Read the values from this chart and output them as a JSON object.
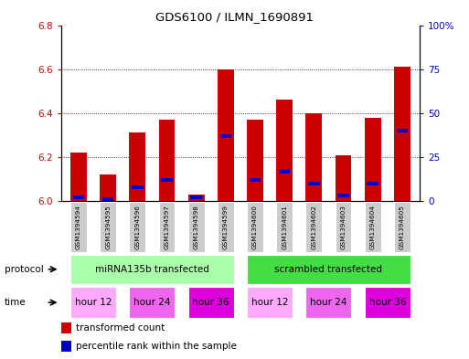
{
  "title": "GDS6100 / ILMN_1690891",
  "samples": [
    "GSM1394594",
    "GSM1394595",
    "GSM1394596",
    "GSM1394597",
    "GSM1394598",
    "GSM1394599",
    "GSM1394600",
    "GSM1394601",
    "GSM1394602",
    "GSM1394603",
    "GSM1394604",
    "GSM1394605"
  ],
  "red_values": [
    6.22,
    6.12,
    6.31,
    6.37,
    6.03,
    6.6,
    6.37,
    6.46,
    6.4,
    6.21,
    6.38,
    6.61
  ],
  "blue_values_pct": [
    2,
    1,
    8,
    12,
    2,
    37,
    12,
    17,
    10,
    3,
    10,
    40
  ],
  "ylim_left": [
    6.0,
    6.8
  ],
  "ylim_right": [
    0,
    100
  ],
  "yticks_left": [
    6.0,
    6.2,
    6.4,
    6.6,
    6.8
  ],
  "yticks_right": [
    0,
    25,
    50,
    75,
    100
  ],
  "ytick_labels_right": [
    "0",
    "25",
    "50",
    "75",
    "100%"
  ],
  "bar_width": 0.55,
  "bar_color_red": "#cc0000",
  "bar_color_blue": "#0000cc",
  "base_value": 6.0,
  "protocol_ranges": [
    {
      "label": "miRNA135b transfected",
      "start": 0,
      "end": 5,
      "color": "#aaffaa"
    },
    {
      "label": "scrambled transfected",
      "start": 6,
      "end": 11,
      "color": "#44dd44"
    }
  ],
  "time_groups": [
    {
      "label": "hour 12",
      "start": 0,
      "end": 1,
      "color": "#ffaaff"
    },
    {
      "label": "hour 24",
      "start": 2,
      "end": 3,
      "color": "#ee66ee"
    },
    {
      "label": "hour 36",
      "start": 4,
      "end": 5,
      "color": "#dd00dd"
    },
    {
      "label": "hour 12",
      "start": 6,
      "end": 7,
      "color": "#ffaaff"
    },
    {
      "label": "hour 24",
      "start": 8,
      "end": 9,
      "color": "#ee66ee"
    },
    {
      "label": "hour 36",
      "start": 10,
      "end": 11,
      "color": "#dd00dd"
    }
  ],
  "bg_color": "#ffffff",
  "tick_color_left": "#cc0000",
  "tick_color_right": "#0000cc",
  "sample_bg_color": "#cccccc",
  "grid_yticks": [
    6.2,
    6.4,
    6.6
  ]
}
